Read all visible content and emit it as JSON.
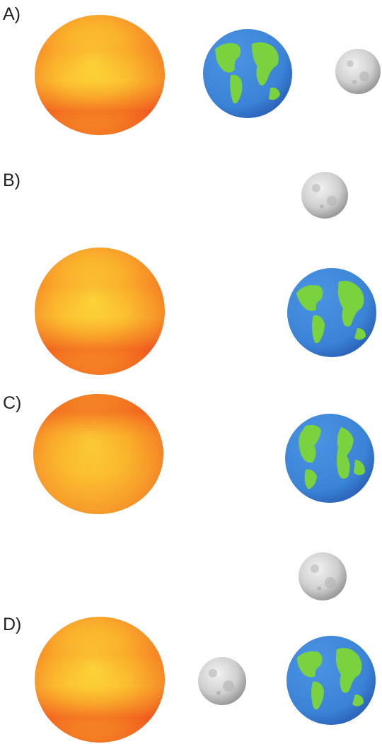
{
  "options": [
    {
      "label": "A)",
      "arrangement": [
        "sun",
        "earth",
        "moon"
      ]
    },
    {
      "label": "B)",
      "arrangement": [
        "moon",
        "sun",
        "earth"
      ]
    },
    {
      "label": "C)",
      "arrangement": [
        "sun",
        "earth",
        "moon"
      ]
    },
    {
      "label": "D)",
      "arrangement": [
        "sun",
        "moon",
        "earth"
      ]
    }
  ],
  "colors": {
    "sun_center": "#fde23a",
    "sun_mid": "#f9a021",
    "sun_edge": "#ee4b1c",
    "earth_ocean": "#3b83d6",
    "earth_land": "#7bd23f",
    "moon_light": "#e6e6e6",
    "moon_dark": "#8f8f8f"
  }
}
